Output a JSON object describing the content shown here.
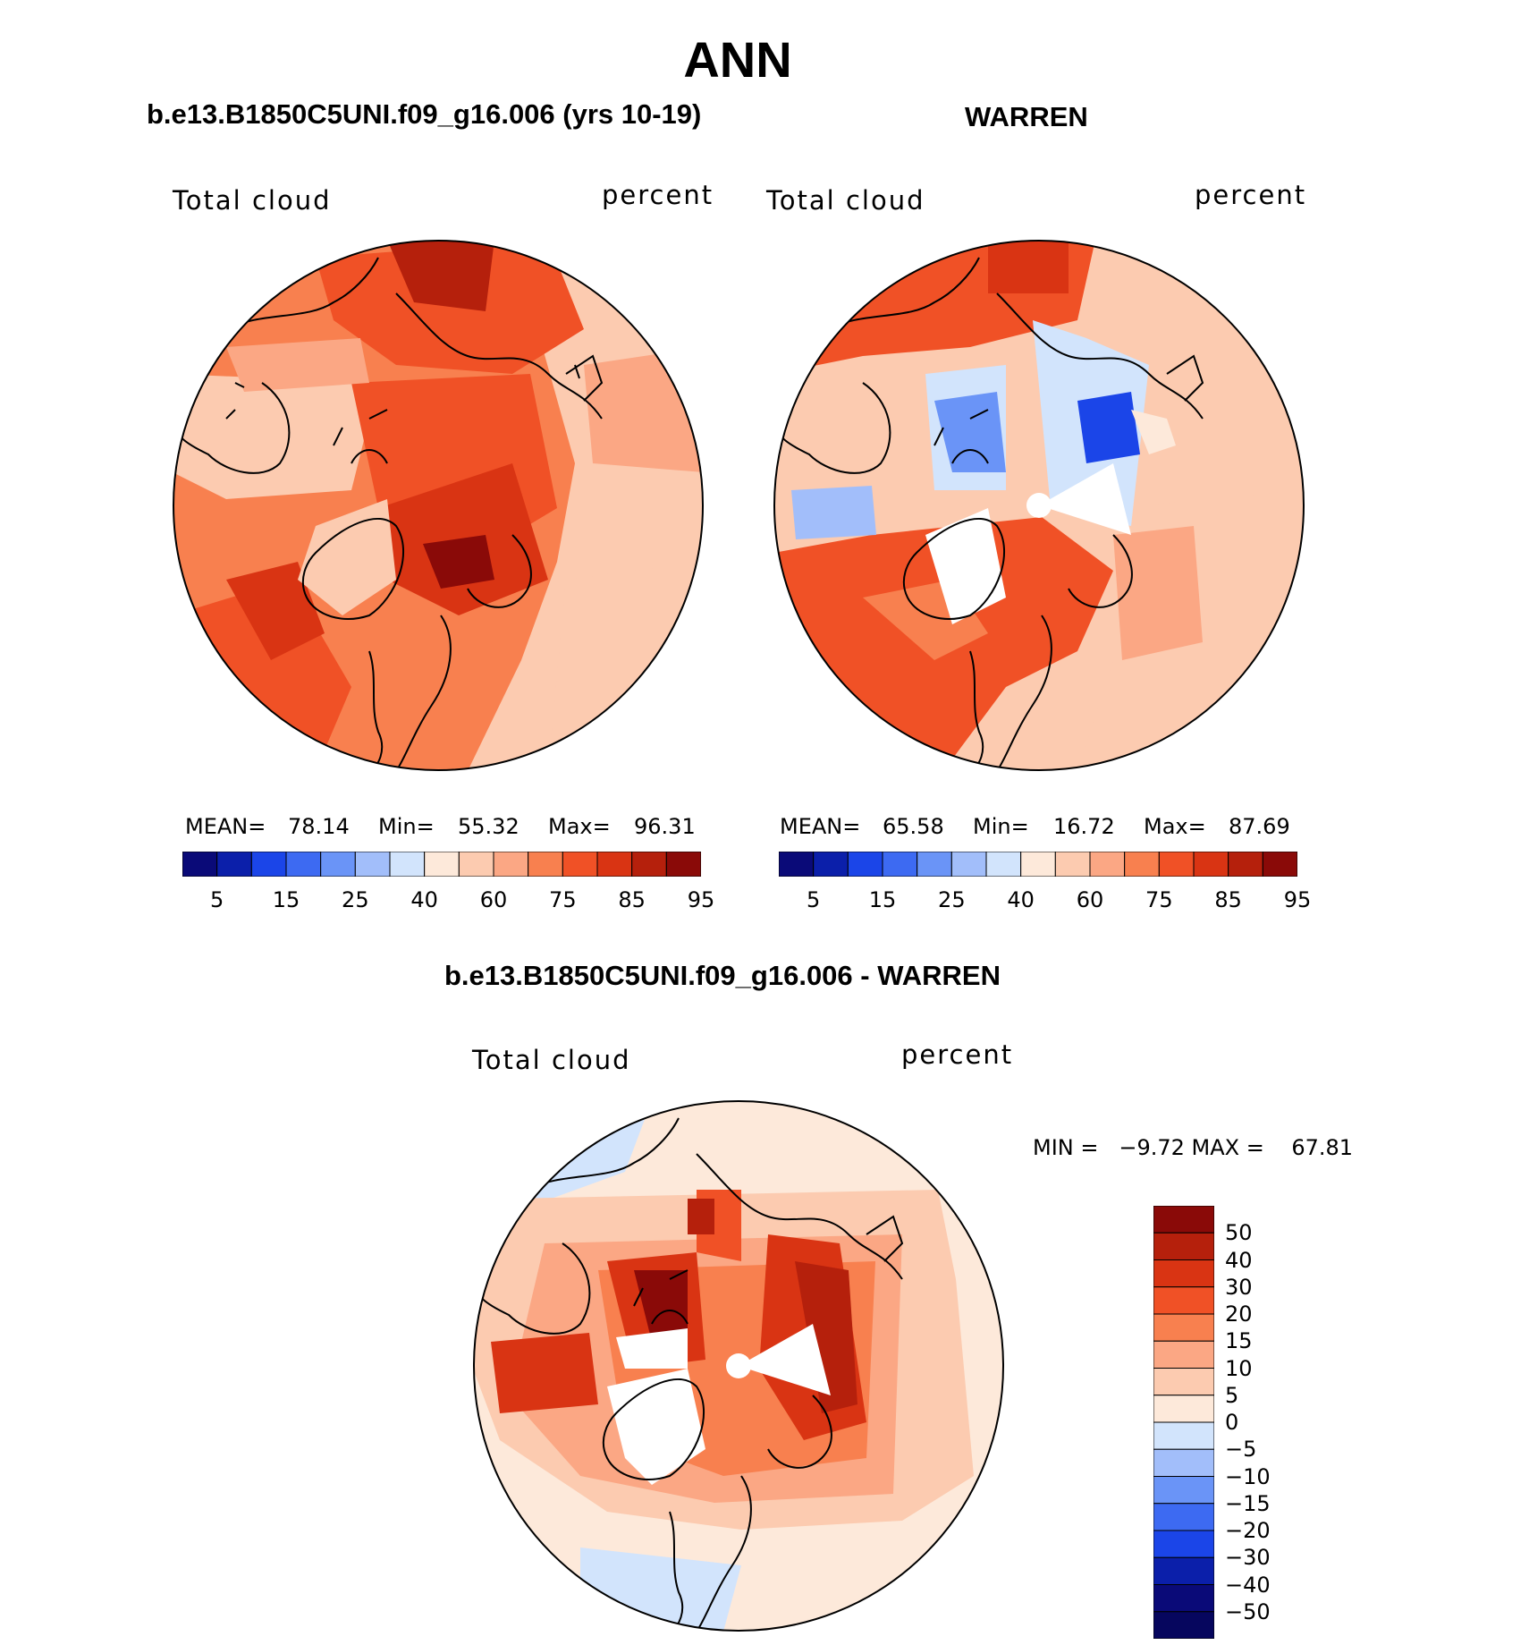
{
  "title": "ANN",
  "panels": [
    {
      "case_label": "b.e13.B1850C5UNI.f09_g16.006 (yrs 10-19)",
      "left_label": "Total cloud",
      "right_label": "percent",
      "stats": {
        "mean_label": "MEAN=",
        "mean": "78.14",
        "min_label": "Min=",
        "min": "55.32",
        "max_label": "Max=",
        "max": "96.31"
      }
    },
    {
      "case_label": "WARREN",
      "left_label": "Total cloud",
      "right_label": "percent",
      "stats": {
        "mean_label": "MEAN=",
        "mean": "65.58",
        "min_label": "Min=",
        "min": "16.72",
        "max_label": "Max=",
        "max": "87.69"
      }
    }
  ],
  "diff_panel": {
    "case_label": "b.e13.B1850C5UNI.f09_g16.006 - WARREN",
    "left_label": "Total cloud",
    "right_label": "percent",
    "minmax_text": "MIN =   −9.72 MAX =    67.81"
  },
  "colors": {
    "abs_scale": [
      "#0a0a78",
      "#0b1faa",
      "#1b45e8",
      "#3d6af2",
      "#6a94f7",
      "#a2befa",
      "#d2e4fc",
      "#fde9da",
      "#fccbb0",
      "#fba784",
      "#f8804f",
      "#f05126",
      "#d93413",
      "#b5200c",
      "#8a0a08"
    ],
    "diff_scale": [
      "#8a0a08",
      "#b5200c",
      "#d93413",
      "#f05126",
      "#f8804f",
      "#fba784",
      "#fccbb0",
      "#fde9da",
      "#d2e4fc",
      "#a2befa",
      "#6a94f7",
      "#3d6af2",
      "#1b45e8",
      "#0b1faa",
      "#0a0a78",
      "#06065e"
    ]
  },
  "chart_data": [
    {
      "type": "heatmap",
      "projection": "north-polar-stereographic",
      "title": "b.e13.B1850C5UNI.f09_g16.006 (yrs 10-19)",
      "variable": "Total cloud",
      "units": "percent",
      "mean": 78.14,
      "min": 55.32,
      "max": 96.31,
      "colorbar_levels": [
        5,
        10,
        15,
        20,
        25,
        30,
        40,
        50,
        60,
        70,
        75,
        80,
        85,
        90,
        95
      ],
      "colorbar_ticks": [
        "5",
        "15",
        "25",
        "40",
        "60",
        "75",
        "85",
        "95"
      ]
    },
    {
      "type": "heatmap",
      "projection": "north-polar-stereographic",
      "title": "WARREN",
      "variable": "Total cloud",
      "units": "percent",
      "mean": 65.58,
      "min": 16.72,
      "max": 87.69,
      "colorbar_levels": [
        5,
        10,
        15,
        20,
        25,
        30,
        40,
        50,
        60,
        70,
        75,
        80,
        85,
        90,
        95
      ],
      "colorbar_ticks": [
        "5",
        "15",
        "25",
        "40",
        "60",
        "75",
        "85",
        "95"
      ]
    },
    {
      "type": "heatmap",
      "projection": "north-polar-stereographic",
      "title": "b.e13.B1850C5UNI.f09_g16.006 - WARREN",
      "variable": "Total cloud",
      "units": "percent",
      "min": -9.72,
      "max": 67.81,
      "colorbar_levels": [
        50,
        40,
        30,
        20,
        15,
        10,
        5,
        0,
        -5,
        -10,
        -15,
        -20,
        -30,
        -40,
        -50
      ],
      "colorbar_ticks": [
        "50",
        "40",
        "30",
        "20",
        "15",
        "10",
        "5",
        "0",
        "−5",
        "−10",
        "−15",
        "−20",
        "−30",
        "−40",
        "−50"
      ]
    }
  ]
}
